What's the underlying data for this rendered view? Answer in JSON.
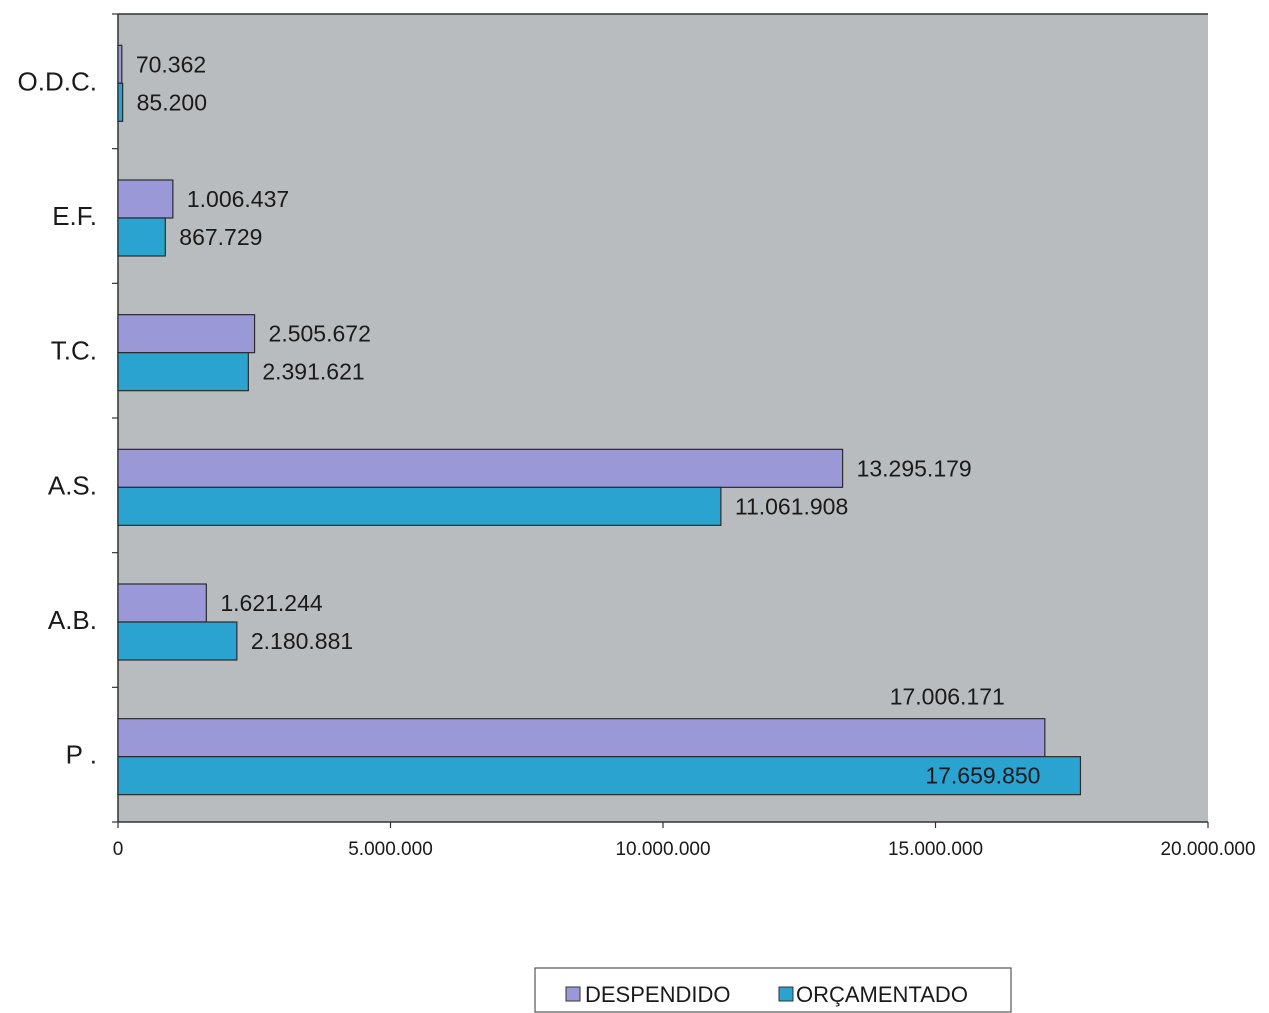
{
  "chart_data": {
    "type": "bar",
    "orientation": "horizontal",
    "title": "",
    "xlabel": "",
    "ylabel": "",
    "categories": [
      "P .",
      "A.B.",
      "A.S.",
      "T.C.",
      "E.F.",
      "O.D.C."
    ],
    "series": [
      {
        "name": "DESPENDIDO",
        "color": "#9b98d8",
        "values": [
          17006171,
          1621244,
          13295179,
          2505672,
          1006437,
          70362
        ],
        "labels": [
          "17.006.171",
          "1.621.244",
          "13.295.179",
          "2.505.672",
          "1.006.437",
          "70.362"
        ]
      },
      {
        "name": "ORÇAMENTADO",
        "color": "#2aa3d0",
        "values": [
          17659850,
          2180881,
          11061908,
          2391621,
          867729,
          85200
        ],
        "labels": [
          "17.659.850",
          "2.180.881",
          "11.061.908",
          "2.391.621",
          "867.729",
          "85.200"
        ]
      }
    ],
    "xlim": [
      0,
      20000000
    ],
    "x_ticks": [
      0,
      5000000,
      10000000,
      15000000,
      20000000
    ],
    "x_tick_labels": [
      "0",
      "5.000.000",
      "10.000.000",
      "15.000.000",
      "20.000.000"
    ],
    "plot_background": "#b9bcbe",
    "grid": false,
    "legend_position": "bottom"
  }
}
